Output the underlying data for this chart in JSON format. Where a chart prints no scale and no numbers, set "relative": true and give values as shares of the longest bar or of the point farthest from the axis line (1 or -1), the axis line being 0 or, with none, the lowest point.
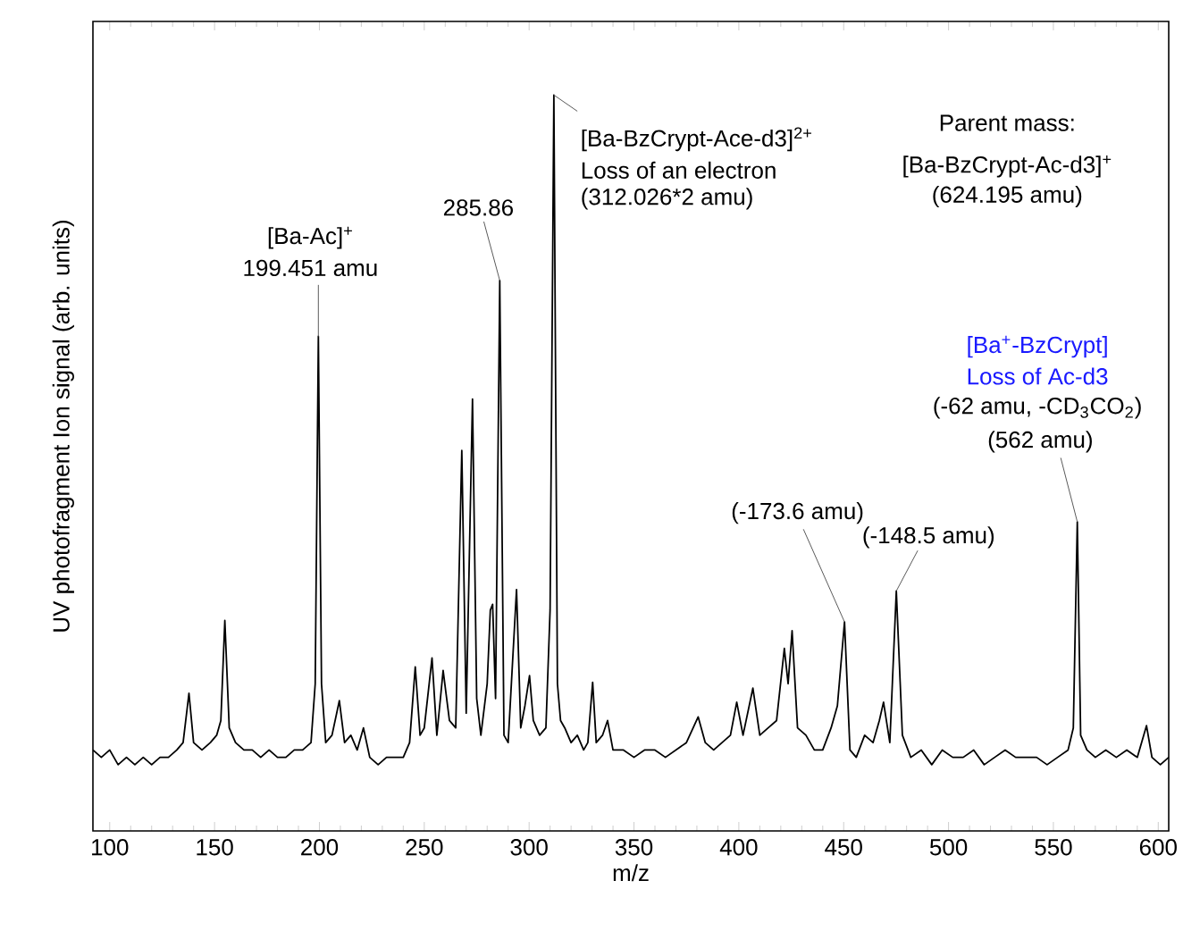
{
  "chart_data": {
    "type": "line",
    "relative": true,
    "xlabel": "m/z",
    "ylabel": "UV photofragment Ion signal (arb. units)",
    "xlim": [
      92,
      605
    ],
    "xticks": [
      100,
      150,
      200,
      250,
      300,
      350,
      400,
      450,
      500,
      550,
      600
    ],
    "x": [
      92,
      96,
      100,
      104,
      108,
      112,
      116,
      120,
      124,
      128,
      132,
      135,
      137.8,
      140,
      144,
      148,
      151,
      153,
      154.9,
      157,
      160,
      164,
      168,
      172,
      176,
      180,
      184,
      188,
      192,
      196,
      198,
      199.5,
      201,
      203,
      206,
      209.5,
      212,
      215,
      218,
      221,
      224,
      228,
      232,
      236,
      240,
      243,
      245.7,
      248,
      250,
      253.7,
      256,
      259,
      262,
      265,
      267.9,
      270,
      273,
      275,
      277,
      280,
      281.5,
      282.6,
      284,
      286,
      288,
      290,
      294,
      296,
      298,
      300.2,
      302,
      305,
      308,
      310,
      311.8,
      313.5,
      315,
      317,
      320,
      323,
      326,
      328,
      330.3,
      332,
      335,
      337.4,
      340,
      345,
      350,
      355,
      360,
      365,
      370,
      375,
      380.6,
      384,
      388,
      392,
      396,
      399,
      402,
      406.7,
      410,
      414,
      418,
      421.7,
      423.5,
      425.4,
      428,
      432,
      436,
      440,
      444,
      447,
      450.4,
      453,
      456,
      460,
      464,
      467,
      469,
      472,
      475.1,
      478,
      482,
      487,
      492,
      497,
      502,
      507,
      512,
      517,
      522,
      527,
      532,
      537,
      542,
      547,
      552,
      557,
      559.5,
      561.4,
      563,
      566,
      570,
      575,
      580,
      585,
      590,
      594.4,
      597,
      601,
      605
    ],
    "series": [
      {
        "color": "#000000",
        "values": [
          0.11,
          0.1,
          0.11,
          0.09,
          0.1,
          0.09,
          0.1,
          0.09,
          0.1,
          0.1,
          0.11,
          0.12,
          0.187,
          0.12,
          0.11,
          0.12,
          0.13,
          0.15,
          0.286,
          0.14,
          0.12,
          0.11,
          0.11,
          0.1,
          0.11,
          0.1,
          0.1,
          0.11,
          0.11,
          0.12,
          0.2,
          0.672,
          0.2,
          0.12,
          0.13,
          0.177,
          0.12,
          0.13,
          0.11,
          0.14,
          0.1,
          0.09,
          0.1,
          0.1,
          0.1,
          0.12,
          0.223,
          0.13,
          0.14,
          0.235,
          0.13,
          0.218,
          0.15,
          0.14,
          0.517,
          0.16,
          0.587,
          0.18,
          0.13,
          0.2,
          0.3,
          0.308,
          0.18,
          0.748,
          0.13,
          0.12,
          0.328,
          0.14,
          0.17,
          0.211,
          0.15,
          0.13,
          0.14,
          0.3,
          1.0,
          0.2,
          0.15,
          0.14,
          0.12,
          0.13,
          0.11,
          0.12,
          0.202,
          0.12,
          0.13,
          0.15,
          0.11,
          0.11,
          0.1,
          0.11,
          0.11,
          0.1,
          0.11,
          0.12,
          0.155,
          0.12,
          0.11,
          0.12,
          0.13,
          0.175,
          0.13,
          0.194,
          0.13,
          0.14,
          0.15,
          0.248,
          0.2,
          0.272,
          0.14,
          0.13,
          0.11,
          0.11,
          0.14,
          0.17,
          0.284,
          0.11,
          0.1,
          0.13,
          0.12,
          0.15,
          0.175,
          0.12,
          0.326,
          0.13,
          0.1,
          0.11,
          0.09,
          0.11,
          0.1,
          0.1,
          0.11,
          0.09,
          0.1,
          0.11,
          0.1,
          0.1,
          0.1,
          0.09,
          0.1,
          0.11,
          0.14,
          0.42,
          0.13,
          0.11,
          0.1,
          0.11,
          0.1,
          0.11,
          0.1,
          0.143,
          0.1,
          0.09,
          0.1
        ]
      }
    ],
    "annotations": [
      "[Ba-Ac]$^{+}$",
      {
        "text": "199.451 amu",
        "x": 199.5,
        "y": 0.672
      },
      {
        "text": "285.86",
        "x": 286,
        "y": 0.748
      },
      {
        "text": "[Ba-BzCrypt-Ace-d3]$^{2+}$",
        "x": 311.8,
        "y": 1.0
      },
      "Loss of an electron",
      "(312.026*2 amu)",
      "Parent mass:",
      "[Ba-BzCrypt-Ac-d3]$^{+}$",
      "(624.195 amu)",
      "[Ba$^{+}$-BzCrypt]",
      "Loss of Ac-d3",
      "(-62 amu, -CD$_{3}$CO$_{2}$)",
      {
        "text": "(562 amu)",
        "x": 561.4,
        "y": 0.42
      },
      {
        "text": "(-173.6 amu)",
        "x": 450.4,
        "y": 0.284
      },
      {
        "text": "(-148.5 amu)",
        "x": 475.1,
        "y": 0.326
      }
    ]
  }
}
